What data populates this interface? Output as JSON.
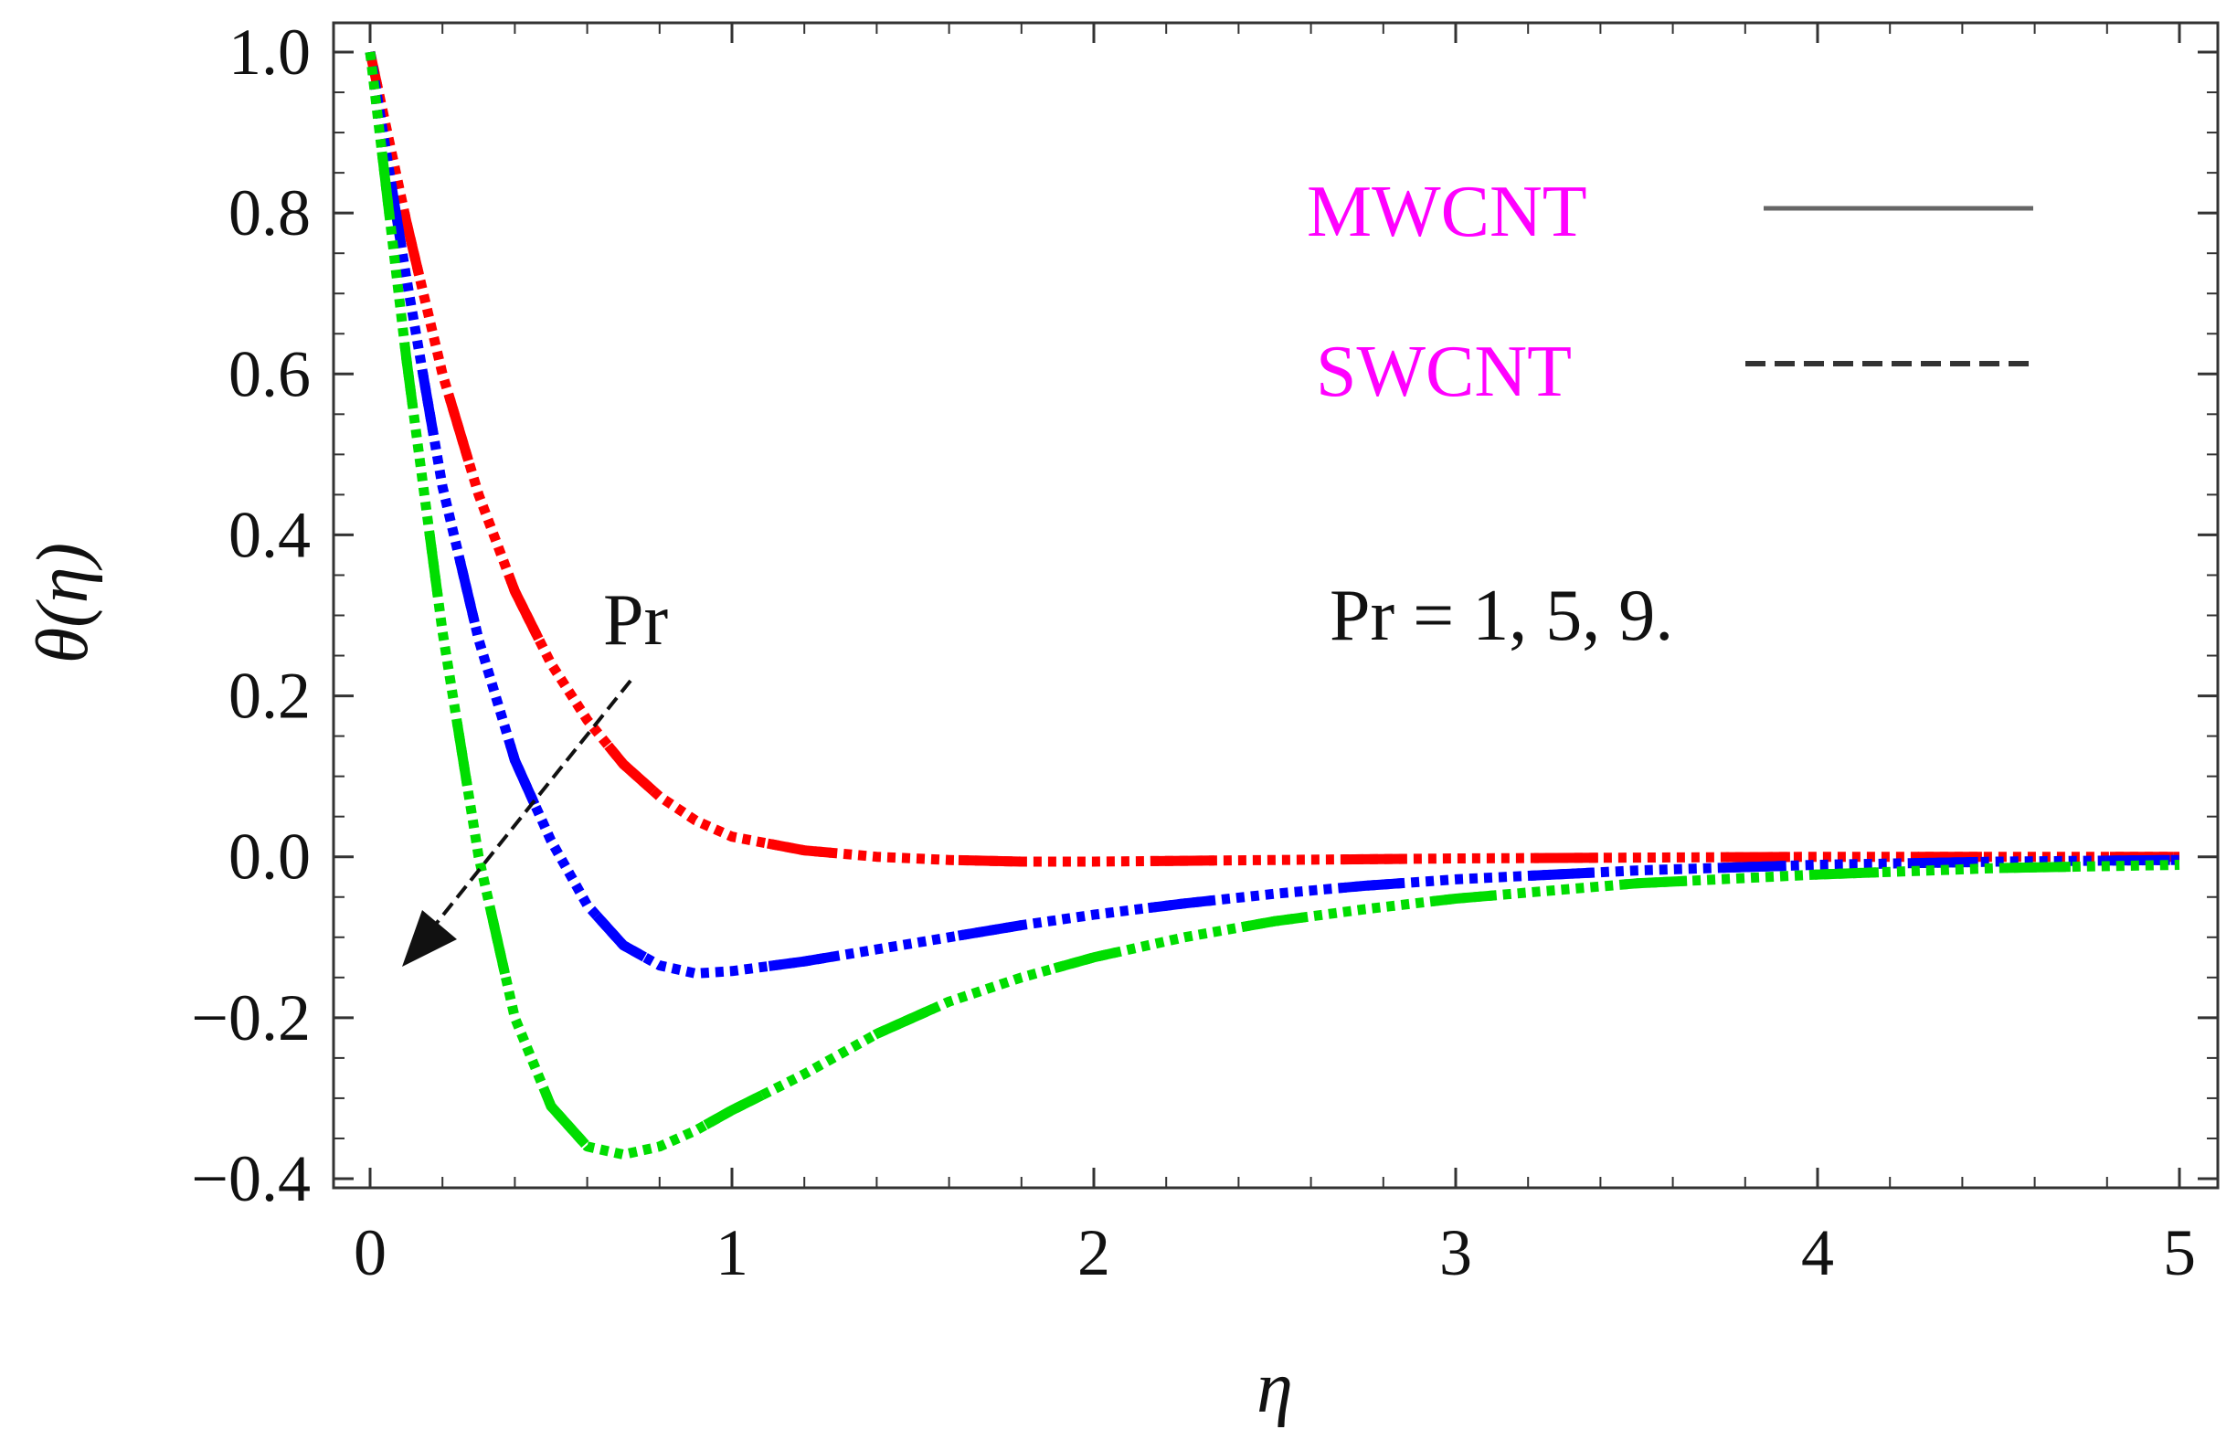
{
  "chart_data": {
    "type": "line",
    "title": "",
    "xlabel": "η",
    "ylabel": "θ(η)",
    "xlim": [
      0,
      5
    ],
    "ylim": [
      -0.4,
      1.0
    ],
    "xticks": [
      0,
      1,
      2,
      3,
      4,
      5
    ],
    "yticks": [
      -0.4,
      -0.2,
      0.0,
      0.2,
      0.4,
      0.6,
      0.8,
      1.0
    ],
    "x_tick_labels": [
      "0",
      "1",
      "2",
      "3",
      "4",
      "5"
    ],
    "y_tick_labels": [
      "−0.4",
      "−0.2",
      "0.0",
      "0.2",
      "0.4",
      "0.6",
      "0.8",
      "1.0"
    ],
    "grid": false,
    "legend": {
      "position": "top-right",
      "entries": [
        {
          "label": "MWCNT",
          "style": "solid"
        },
        {
          "label": "SWCNT",
          "style": "dashed"
        }
      ],
      "text_color": "#ff00ff"
    },
    "annotations": {
      "pr_values": "Pr = 1, 5, 9.",
      "arrow_label": "Pr"
    },
    "x": [
      0,
      0.1,
      0.2,
      0.3,
      0.4,
      0.5,
      0.6,
      0.7,
      0.8,
      0.9,
      1.0,
      1.2,
      1.4,
      1.6,
      1.8,
      2.0,
      2.25,
      2.5,
      2.75,
      3.0,
      3.5,
      4.0,
      4.5,
      5.0
    ],
    "series": [
      {
        "name": "Pr = 1",
        "color": "#ff0000",
        "values": [
          1.0,
          0.79,
          0.6,
          0.45,
          0.33,
          0.24,
          0.17,
          0.115,
          0.075,
          0.045,
          0.025,
          0.008,
          0.0,
          -0.004,
          -0.006,
          -0.006,
          -0.005,
          -0.004,
          -0.003,
          -0.002,
          -0.001,
          0.0,
          0.0,
          0.0
        ]
      },
      {
        "name": "Pr = 5",
        "color": "#0000ff",
        "values": [
          1.0,
          0.72,
          0.46,
          0.27,
          0.12,
          0.02,
          -0.06,
          -0.11,
          -0.135,
          -0.145,
          -0.142,
          -0.13,
          -0.115,
          -0.1,
          -0.085,
          -0.072,
          -0.058,
          -0.046,
          -0.036,
          -0.028,
          -0.017,
          -0.01,
          -0.006,
          -0.004
        ]
      },
      {
        "name": "Pr = 9",
        "color": "#00dd00",
        "values": [
          1.0,
          0.62,
          0.28,
          0.0,
          -0.2,
          -0.31,
          -0.36,
          -0.37,
          -0.36,
          -0.34,
          -0.315,
          -0.27,
          -0.22,
          -0.18,
          -0.15,
          -0.125,
          -0.1,
          -0.08,
          -0.065,
          -0.052,
          -0.033,
          -0.022,
          -0.014,
          -0.01
        ]
      }
    ]
  }
}
